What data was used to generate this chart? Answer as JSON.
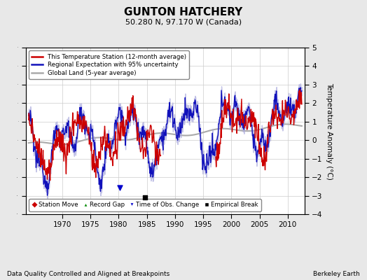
{
  "title": "GUNTON HATCHERY",
  "subtitle": "50.280 N, 97.170 W (Canada)",
  "xlabel_bottom": "Data Quality Controlled and Aligned at Breakpoints",
  "xlabel_right": "Berkeley Earth",
  "ylabel": "Temperature Anomaly (°C)",
  "xlim": [
    1963.5,
    2013.0
  ],
  "ylim": [
    -4,
    5
  ],
  "yticks": [
    -4,
    -3,
    -2,
    -1,
    0,
    1,
    2,
    3,
    4,
    5
  ],
  "xticks": [
    1970,
    1975,
    1980,
    1985,
    1990,
    1995,
    2000,
    2005,
    2010
  ],
  "background_color": "#e8e8e8",
  "plot_bg_color": "#ffffff",
  "grid_color": "#cccccc",
  "station_line_color": "#cc0000",
  "regional_line_color": "#1111bb",
  "regional_fill_color": "#aaaadd",
  "global_line_color": "#aaaaaa",
  "legend_items": [
    {
      "label": "This Temperature Station (12-month average)",
      "color": "#cc0000",
      "lw": 2
    },
    {
      "label": "Regional Expectation with 95% uncertainty",
      "color": "#1111bb",
      "lw": 2
    },
    {
      "label": "Global Land (5-year average)",
      "color": "#aaaaaa",
      "lw": 2
    }
  ],
  "marker_legend": [
    {
      "label": "Station Move",
      "color": "#cc0000",
      "marker": "D"
    },
    {
      "label": "Record Gap",
      "color": "#008800",
      "marker": "^"
    },
    {
      "label": "Time of Obs. Change",
      "color": "#0000cc",
      "marker": "v"
    },
    {
      "label": "Empirical Break",
      "color": "#000000",
      "marker": "s"
    }
  ],
  "empirical_break_x": 1984.7,
  "empirical_break_y": -3.1,
  "time_obs_change_x": 1980.2,
  "time_obs_change_y": -2.55
}
